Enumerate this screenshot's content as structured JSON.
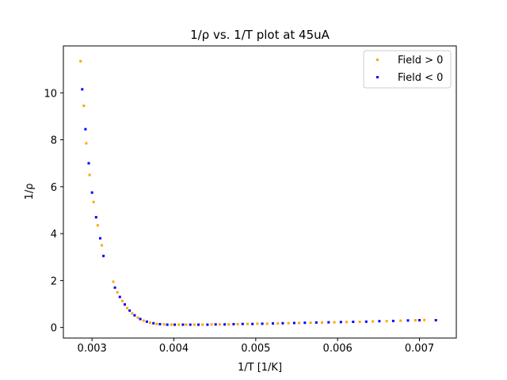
{
  "chart_data": {
    "type": "scatter",
    "title": "1/ρ vs. 1/T plot at 45uA",
    "xlabel": "1/T [1/K]",
    "ylabel": "1/ρ",
    "xlim": [
      0.00265,
      0.00745
    ],
    "ylim": [
      -0.45,
      12.0
    ],
    "x_ticks": [
      0.003,
      0.004,
      0.005,
      0.006,
      0.007
    ],
    "x_tick_labels": [
      "0.003",
      "0.004",
      "0.005",
      "0.006",
      "0.007"
    ],
    "y_ticks": [
      0,
      2,
      4,
      6,
      8,
      10
    ],
    "y_tick_labels": [
      "0",
      "2",
      "4",
      "6",
      "8",
      "10"
    ],
    "grid": false,
    "legend_position": "top-right",
    "series": [
      {
        "name": "Field > 0",
        "color": "#ffa500",
        "points": [
          [
            0.00286,
            11.35
          ],
          [
            0.0029,
            9.45
          ],
          [
            0.00293,
            7.85
          ],
          [
            0.00297,
            6.5
          ],
          [
            0.00302,
            5.35
          ],
          [
            0.00307,
            4.35
          ],
          [
            0.00312,
            3.5
          ],
          [
            0.00326,
            1.95
          ],
          [
            0.00331,
            1.5
          ],
          [
            0.00337,
            1.13
          ],
          [
            0.00343,
            0.83
          ],
          [
            0.00349,
            0.6
          ],
          [
            0.00356,
            0.42
          ],
          [
            0.00363,
            0.29
          ],
          [
            0.00371,
            0.2
          ],
          [
            0.00379,
            0.15
          ],
          [
            0.00388,
            0.13
          ],
          [
            0.00397,
            0.12
          ],
          [
            0.00406,
            0.12
          ],
          [
            0.00415,
            0.12
          ],
          [
            0.00425,
            0.12
          ],
          [
            0.00435,
            0.12
          ],
          [
            0.00446,
            0.13
          ],
          [
            0.00456,
            0.13
          ],
          [
            0.00467,
            0.13
          ],
          [
            0.00478,
            0.14
          ],
          [
            0.0049,
            0.15
          ],
          [
            0.00502,
            0.16
          ],
          [
            0.00514,
            0.16
          ],
          [
            0.00527,
            0.17
          ],
          [
            0.0054,
            0.18
          ],
          [
            0.00553,
            0.19
          ],
          [
            0.00567,
            0.2
          ],
          [
            0.00581,
            0.21
          ],
          [
            0.00596,
            0.22
          ],
          [
            0.00611,
            0.23
          ],
          [
            0.00627,
            0.24
          ],
          [
            0.00643,
            0.26
          ],
          [
            0.0066,
            0.27
          ],
          [
            0.00677,
            0.29
          ],
          [
            0.00695,
            0.31
          ],
          [
            0.00706,
            0.32
          ]
        ]
      },
      {
        "name": "Field < 0",
        "color": "#0000ff",
        "points": [
          [
            0.00288,
            10.15
          ],
          [
            0.00292,
            8.45
          ],
          [
            0.00296,
            7.0
          ],
          [
            0.003,
            5.75
          ],
          [
            0.00305,
            4.7
          ],
          [
            0.0031,
            3.8
          ],
          [
            0.00314,
            3.05
          ],
          [
            0.00328,
            1.7
          ],
          [
            0.00334,
            1.3
          ],
          [
            0.0034,
            0.98
          ],
          [
            0.00346,
            0.72
          ],
          [
            0.00352,
            0.52
          ],
          [
            0.00359,
            0.36
          ],
          [
            0.00367,
            0.25
          ],
          [
            0.00375,
            0.18
          ],
          [
            0.00383,
            0.14
          ],
          [
            0.00392,
            0.12
          ],
          [
            0.00401,
            0.12
          ],
          [
            0.00411,
            0.12
          ],
          [
            0.0042,
            0.12
          ],
          [
            0.0043,
            0.12
          ],
          [
            0.00441,
            0.12
          ],
          [
            0.00451,
            0.13
          ],
          [
            0.00462,
            0.13
          ],
          [
            0.00473,
            0.14
          ],
          [
            0.00484,
            0.15
          ],
          [
            0.00496,
            0.15
          ],
          [
            0.00508,
            0.16
          ],
          [
            0.00521,
            0.17
          ],
          [
            0.00533,
            0.18
          ],
          [
            0.00547,
            0.19
          ],
          [
            0.0056,
            0.2
          ],
          [
            0.00574,
            0.21
          ],
          [
            0.00589,
            0.22
          ],
          [
            0.00604,
            0.23
          ],
          [
            0.00619,
            0.24
          ],
          [
            0.00635,
            0.25
          ],
          [
            0.00651,
            0.27
          ],
          [
            0.00668,
            0.28
          ],
          [
            0.00686,
            0.3
          ],
          [
            0.007,
            0.31
          ],
          [
            0.0072,
            0.31
          ]
        ]
      }
    ]
  }
}
